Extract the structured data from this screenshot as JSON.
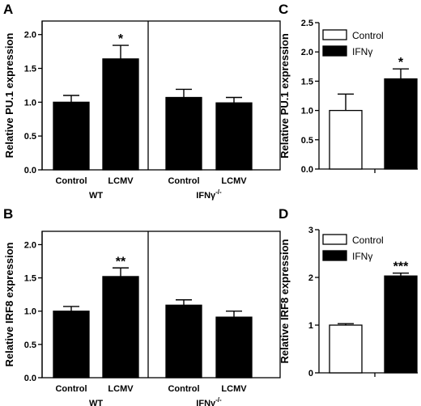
{
  "chart_data": [
    {
      "panel": "A",
      "type": "bar",
      "ylabel": "Relative PU.1 expression",
      "ylim": [
        0,
        2.2
      ],
      "yticks": [
        "0.0",
        "0.5",
        "1.0",
        "1.5",
        "2.0"
      ],
      "categories": [
        "Control",
        "LCMV",
        "Control",
        "LCMV"
      ],
      "values": [
        1.0,
        1.64,
        1.07,
        0.99
      ],
      "errors": [
        0.1,
        0.2,
        0.12,
        0.08
      ],
      "significance": [
        "",
        "*",
        "",
        ""
      ],
      "groups": [
        {
          "label": "WT",
          "sup": ""
        },
        {
          "label": "IFNγ",
          "sup": "-/-"
        }
      ],
      "bar_color": "#000000"
    },
    {
      "panel": "B",
      "type": "bar",
      "ylabel": "Relative IRF8 expression",
      "ylim": [
        0,
        2.2
      ],
      "yticks": [
        "0.0",
        "0.5",
        "1.0",
        "1.5",
        "2.0"
      ],
      "categories": [
        "Control",
        "LCMV",
        "Control",
        "LCMV"
      ],
      "values": [
        1.0,
        1.52,
        1.09,
        0.91
      ],
      "errors": [
        0.07,
        0.13,
        0.08,
        0.09
      ],
      "significance": [
        "",
        "**",
        "",
        ""
      ],
      "groups": [
        {
          "label": "WT",
          "sup": ""
        },
        {
          "label": "IFNγ",
          "sup": "-/-"
        }
      ],
      "bar_color": "#000000"
    },
    {
      "panel": "C",
      "type": "bar",
      "ylabel": "Relative PU.1 expression",
      "ylim": [
        0,
        2.5
      ],
      "yticks": [
        "0.0",
        "0.5",
        "1.0",
        "1.5",
        "2.0",
        "2.5"
      ],
      "series": [
        {
          "name": "Control",
          "value": 1.0,
          "error": 0.28,
          "color": "#ffffff",
          "sig": ""
        },
        {
          "name": "IFNγ",
          "value": 1.54,
          "error": 0.17,
          "color": "#000000",
          "sig": "*"
        }
      ],
      "legend": "top-left"
    },
    {
      "panel": "D",
      "type": "bar",
      "ylabel": "Relative IRF8 expression",
      "ylim": [
        0,
        3
      ],
      "yticks": [
        "0",
        "1",
        "2",
        "3"
      ],
      "series": [
        {
          "name": "Control",
          "value": 1.0,
          "error": 0.03,
          "color": "#ffffff",
          "sig": ""
        },
        {
          "name": "IFNγ",
          "value": 2.03,
          "error": 0.06,
          "color": "#000000",
          "sig": "***"
        }
      ],
      "legend": "top-left"
    }
  ]
}
